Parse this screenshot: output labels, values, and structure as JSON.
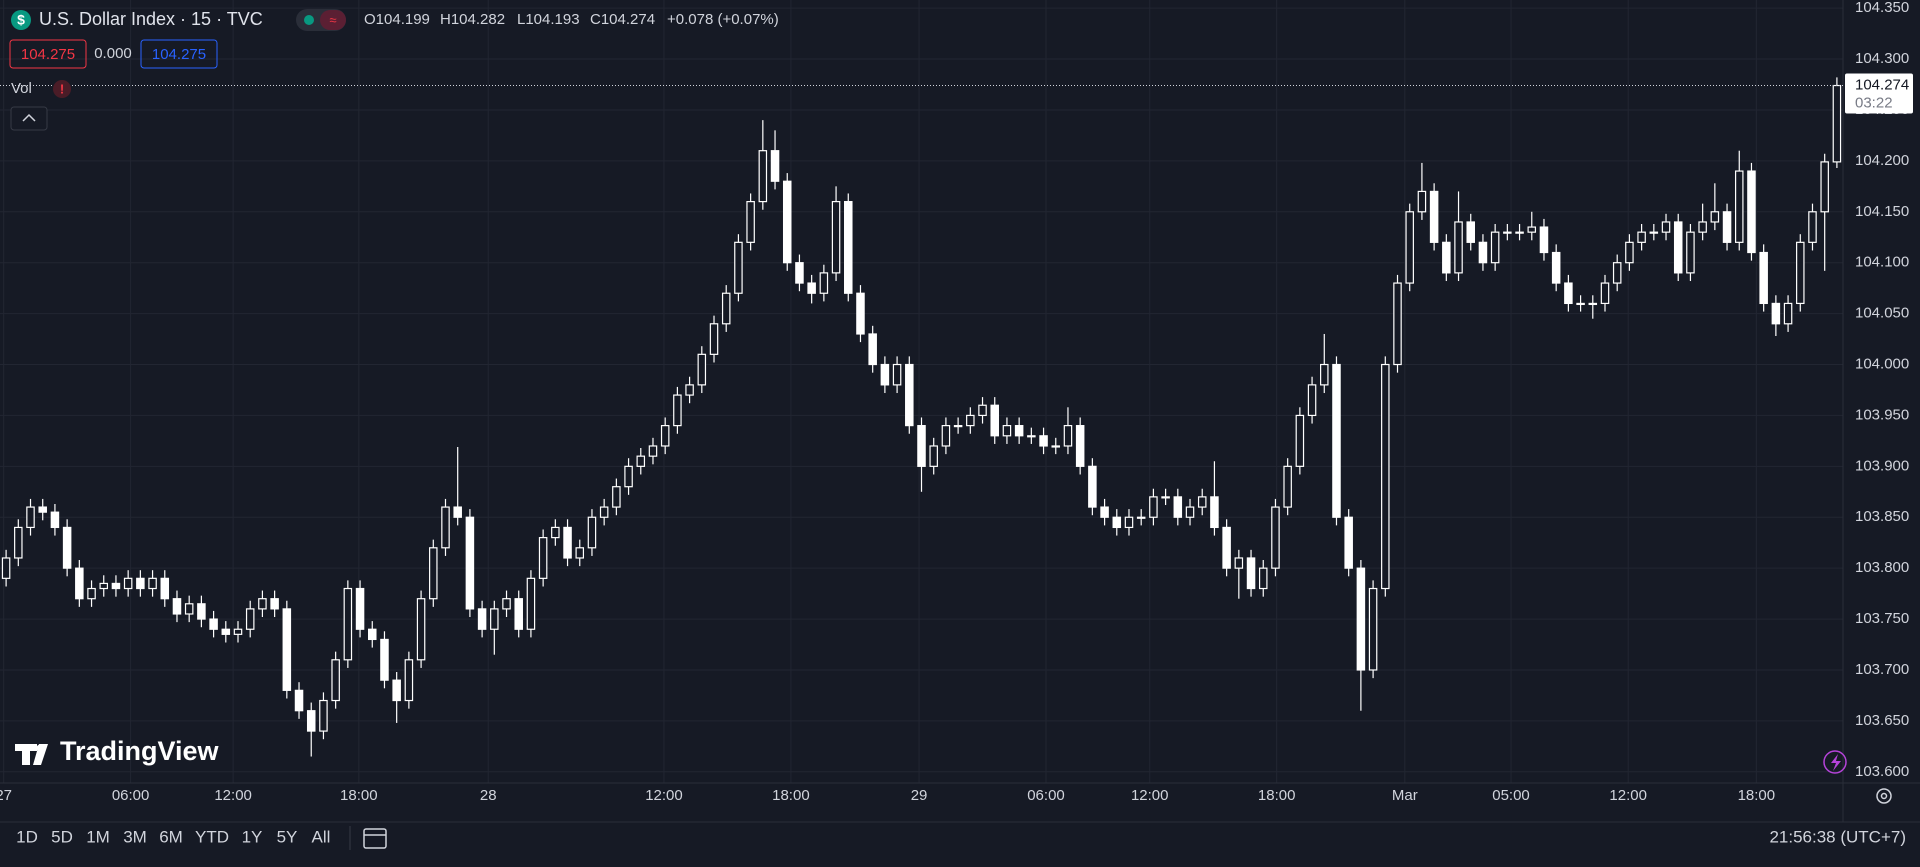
{
  "header": {
    "title": "U.S. Dollar Index · 15 · TVC",
    "ohlc": [
      "O104.199",
      "H104.282",
      "L104.193",
      "C104.274"
    ],
    "change": "+0.078 (+0.07%)",
    "bid": "104.275",
    "spread": "0.000",
    "ask": "104.275",
    "volume_label": "Vol"
  },
  "logo": "TradingView",
  "toolbar": {
    "ranges": [
      "1D",
      "5D",
      "1M",
      "3M",
      "6M",
      "YTD",
      "1Y",
      "5Y",
      "All"
    ],
    "clock": "21:56:38 (UTC+7)"
  },
  "chart_data": {
    "type": "candlestick",
    "color": "#ffffff",
    "grid": true,
    "countdown": "03:22",
    "xlim": [
      -0.5,
      150.5
    ],
    "ylim": [
      103.589,
      104.358
    ],
    "yticks": [
      {
        "value": 103.6,
        "label": "103.600"
      },
      {
        "value": 103.65,
        "label": "103.650"
      },
      {
        "value": 103.7,
        "label": "103.700"
      },
      {
        "value": 103.75,
        "label": "103.750"
      },
      {
        "value": 103.8,
        "label": "103.800"
      },
      {
        "value": 103.85,
        "label": "103.850"
      },
      {
        "value": 103.9,
        "label": "103.900"
      },
      {
        "value": 103.95,
        "label": "103.950"
      },
      {
        "value": 104,
        "label": "104.000"
      },
      {
        "value": 104.05,
        "label": "104.050"
      },
      {
        "value": 104.1,
        "label": "104.100"
      },
      {
        "value": 104.15,
        "label": "104.150"
      },
      {
        "value": 104.2,
        "label": "104.200"
      },
      {
        "value": 104.25,
        "label": "104.250"
      },
      {
        "value": 104.3,
        "label": "104.300"
      },
      {
        "value": 104.35,
        "label": "104.350"
      }
    ],
    "xticks": [
      {
        "value": -0.2,
        "label": "27"
      },
      {
        "value": 10.2,
        "label": "06:00"
      },
      {
        "value": 18.6,
        "label": "12:00"
      },
      {
        "value": 28.9,
        "label": "18:00"
      },
      {
        "value": 39.5,
        "label": "28"
      },
      {
        "value": 53.9,
        "label": "12:00"
      },
      {
        "value": 64.3,
        "label": "18:00"
      },
      {
        "value": 74.8,
        "label": "29"
      },
      {
        "value": 85.2,
        "label": "06:00"
      },
      {
        "value": 93.7,
        "label": "12:00"
      },
      {
        "value": 104.1,
        "label": "18:00"
      },
      {
        "value": 114.6,
        "label": "Mar"
      },
      {
        "value": 123.3,
        "label": "05:00"
      },
      {
        "value": 132.9,
        "label": "12:00"
      },
      {
        "value": 143.4,
        "label": "18:00"
      }
    ],
    "open": [
      103.79,
      103.81,
      103.84,
      103.86,
      103.855,
      103.84,
      103.8,
      103.77,
      103.78,
      103.785,
      103.78,
      103.79,
      103.78,
      103.79,
      103.77,
      103.755,
      103.765,
      103.75,
      103.74,
      103.735,
      103.74,
      103.76,
      103.77,
      103.76,
      103.68,
      103.66,
      103.64,
      103.67,
      103.71,
      103.78,
      103.74,
      103.73,
      103.69,
      103.67,
      103.71,
      103.77,
      103.82,
      103.86,
      103.85,
      103.76,
      103.74,
      103.76,
      103.77,
      103.74,
      103.79,
      103.83,
      103.84,
      103.81,
      103.82,
      103.85,
      103.86,
      103.88,
      103.9,
      103.91,
      103.92,
      103.94,
      103.97,
      103.98,
      104.01,
      104.04,
      104.07,
      104.12,
      104.16,
      104.21,
      104.18,
      104.1,
      104.08,
      104.07,
      104.09,
      104.16,
      104.07,
      104.03,
      104.0,
      103.98,
      104.0,
      103.94,
      103.9,
      103.92,
      103.94,
      103.94,
      103.95,
      103.96,
      103.93,
      103.94,
      103.93,
      103.93,
      103.92,
      103.92,
      103.94,
      103.9,
      103.86,
      103.85,
      103.84,
      103.85,
      103.85,
      103.87,
      103.87,
      103.85,
      103.86,
      103.87,
      103.84,
      103.8,
      103.81,
      103.78,
      103.8,
      103.86,
      103.9,
      103.95,
      103.98,
      104.0,
      103.85,
      103.8,
      103.7,
      103.78,
      104.0,
      104.08,
      104.15,
      104.17,
      104.12,
      104.09,
      104.14,
      104.12,
      104.1,
      104.13,
      104.13,
      104.13,
      104.135,
      104.11,
      104.08,
      104.06,
      104.06,
      104.06,
      104.08,
      104.1,
      104.12,
      104.13,
      104.13,
      104.14,
      104.09,
      104.13,
      104.14,
      104.15,
      104.12,
      104.19,
      104.11,
      104.06,
      104.04,
      104.06,
      104.12,
      104.15,
      104.199
    ],
    "high": [
      103.818,
      103.848,
      103.868,
      103.868,
      103.863,
      103.848,
      103.808,
      103.788,
      103.793,
      103.793,
      103.798,
      103.798,
      103.798,
      103.798,
      103.778,
      103.773,
      103.773,
      103.758,
      103.748,
      103.748,
      103.768,
      103.778,
      103.778,
      103.768,
      103.688,
      103.668,
      103.678,
      103.718,
      103.788,
      103.788,
      103.748,
      103.738,
      103.698,
      103.718,
      103.778,
      103.828,
      103.868,
      103.919,
      103.858,
      103.768,
      103.768,
      103.778,
      103.778,
      103.798,
      103.838,
      103.848,
      103.848,
      103.828,
      103.858,
      103.868,
      103.888,
      103.908,
      103.918,
      103.928,
      103.948,
      103.978,
      103.988,
      104.018,
      104.048,
      104.078,
      104.128,
      104.168,
      104.24,
      104.23,
      104.188,
      104.108,
      104.088,
      104.098,
      104.175,
      104.168,
      104.078,
      104.038,
      104.008,
      104.008,
      104.008,
      103.948,
      103.928,
      103.948,
      103.948,
      103.958,
      103.968,
      103.968,
      103.948,
      103.948,
      103.938,
      103.938,
      103.928,
      103.958,
      103.948,
      103.908,
      103.868,
      103.858,
      103.858,
      103.858,
      103.878,
      103.878,
      103.878,
      103.868,
      103.878,
      103.905,
      103.848,
      103.818,
      103.818,
      103.808,
      103.868,
      103.908,
      103.958,
      103.988,
      104.03,
      104.008,
      103.858,
      103.808,
      103.788,
      104.008,
      104.088,
      104.158,
      104.198,
      104.178,
      104.128,
      104.17,
      104.148,
      104.128,
      104.138,
      104.138,
      104.138,
      104.15,
      104.143,
      104.118,
      104.088,
      104.068,
      104.068,
      104.088,
      104.108,
      104.128,
      104.138,
      104.138,
      104.148,
      104.148,
      104.138,
      104.158,
      104.178,
      104.158,
      104.21,
      104.198,
      104.118,
      104.068,
      104.068,
      104.128,
      104.158,
      104.207,
      104.282
    ],
    "low": [
      103.782,
      103.802,
      103.832,
      103.847,
      103.832,
      103.792,
      103.762,
      103.762,
      103.772,
      103.772,
      103.772,
      103.772,
      103.772,
      103.762,
      103.747,
      103.747,
      103.742,
      103.732,
      103.727,
      103.727,
      103.732,
      103.752,
      103.752,
      103.672,
      103.652,
      103.615,
      103.632,
      103.662,
      103.702,
      103.732,
      103.722,
      103.682,
      103.648,
      103.662,
      103.702,
      103.762,
      103.812,
      103.842,
      103.752,
      103.732,
      103.715,
      103.752,
      103.732,
      103.732,
      103.782,
      103.822,
      103.802,
      103.802,
      103.812,
      103.842,
      103.852,
      103.872,
      103.892,
      103.902,
      103.912,
      103.932,
      103.962,
      103.972,
      104.002,
      104.032,
      104.062,
      104.112,
      104.152,
      104.172,
      104.092,
      104.072,
      104.06,
      104.062,
      104.082,
      104.062,
      104.022,
      103.992,
      103.972,
      103.972,
      103.932,
      103.875,
      103.892,
      103.912,
      103.932,
      103.932,
      103.942,
      103.922,
      103.922,
      103.922,
      103.922,
      103.912,
      103.912,
      103.912,
      103.892,
      103.852,
      103.842,
      103.832,
      103.832,
      103.842,
      103.842,
      103.862,
      103.842,
      103.842,
      103.852,
      103.832,
      103.792,
      103.77,
      103.772,
      103.772,
      103.792,
      103.852,
      103.892,
      103.942,
      103.972,
      103.842,
      103.792,
      103.66,
      103.692,
      103.772,
      103.992,
      104.072,
      104.142,
      104.112,
      104.082,
      104.082,
      104.112,
      104.092,
      104.092,
      104.122,
      104.122,
      104.122,
      104.102,
      104.072,
      104.052,
      104.052,
      104.045,
      104.052,
      104.072,
      104.092,
      104.112,
      104.122,
      104.122,
      104.082,
      104.082,
      104.122,
      104.132,
      104.112,
      104.112,
      104.102,
      104.052,
      104.028,
      104.032,
      104.052,
      104.112,
      104.092,
      104.193
    ],
    "close": [
      103.81,
      103.84,
      103.86,
      103.855,
      103.84,
      103.8,
      103.77,
      103.78,
      103.785,
      103.78,
      103.79,
      103.78,
      103.79,
      103.77,
      103.755,
      103.765,
      103.75,
      103.74,
      103.735,
      103.74,
      103.76,
      103.77,
      103.76,
      103.68,
      103.66,
      103.64,
      103.67,
      103.71,
      103.78,
      103.74,
      103.73,
      103.69,
      103.67,
      103.71,
      103.77,
      103.82,
      103.86,
      103.85,
      103.76,
      103.74,
      103.76,
      103.77,
      103.74,
      103.79,
      103.83,
      103.84,
      103.81,
      103.82,
      103.85,
      103.86,
      103.88,
      103.9,
      103.91,
      103.92,
      103.94,
      103.97,
      103.98,
      104.01,
      104.04,
      104.07,
      104.12,
      104.16,
      104.21,
      104.18,
      104.1,
      104.08,
      104.07,
      104.09,
      104.16,
      104.07,
      104.03,
      104.0,
      103.98,
      104.0,
      103.94,
      103.9,
      103.92,
      103.94,
      103.94,
      103.95,
      103.96,
      103.93,
      103.94,
      103.93,
      103.93,
      103.92,
      103.92,
      103.94,
      103.9,
      103.86,
      103.85,
      103.84,
      103.85,
      103.85,
      103.87,
      103.87,
      103.85,
      103.86,
      103.87,
      103.84,
      103.8,
      103.81,
      103.78,
      103.8,
      103.86,
      103.9,
      103.95,
      103.98,
      104.0,
      103.85,
      103.8,
      103.7,
      103.78,
      104.0,
      104.08,
      104.15,
      104.17,
      104.12,
      104.09,
      104.14,
      104.12,
      104.1,
      104.13,
      104.13,
      104.13,
      104.135,
      104.11,
      104.08,
      104.06,
      104.06,
      104.06,
      104.08,
      104.1,
      104.12,
      104.13,
      104.13,
      104.14,
      104.09,
      104.13,
      104.14,
      104.15,
      104.12,
      104.19,
      104.11,
      104.06,
      104.04,
      104.06,
      104.12,
      104.15,
      104.199,
      104.274
    ]
  }
}
